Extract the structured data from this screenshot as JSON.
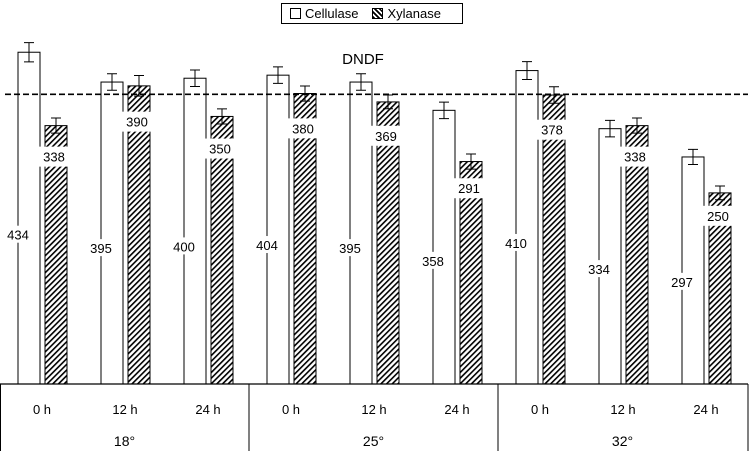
{
  "colors": {
    "cellulase_fill": "#ffffff",
    "xylanase_hatch": "#000000",
    "axis": "#000000"
  },
  "chart_data": {
    "type": "bar",
    "title": "DNDF",
    "series": [
      {
        "name": "Cellulase",
        "pattern": "plain",
        "values": [
          434,
          395,
          400,
          404,
          395,
          358,
          410,
          334,
          297
        ]
      },
      {
        "name": "Xylanase",
        "pattern": "hatched",
        "values": [
          338,
          390,
          350,
          380,
          369,
          291,
          378,
          338,
          250
        ]
      }
    ],
    "categories": [
      "0 h",
      "12 h",
      "24 h",
      "0 h",
      "12 h",
      "24 h",
      "0 h",
      "12 h",
      "24 h"
    ],
    "groups": [
      {
        "label": "18°",
        "categories": [
          "0 h",
          "12 h",
          "24 h"
        ]
      },
      {
        "label": "25°",
        "categories": [
          "0 h",
          "12 h",
          "24 h"
        ]
      },
      {
        "label": "32°",
        "categories": [
          "0 h",
          "12 h",
          "24 h"
        ]
      }
    ],
    "error_bars": {
      "Cellulase": [
        14,
        12,
        12,
        12,
        12,
        12,
        13,
        12,
        11
      ],
      "Xylanase": [
        11,
        15,
        11,
        11,
        10,
        11,
        12,
        11,
        10
      ]
    },
    "reference_line": {
      "value": 379,
      "style": "dashed"
    },
    "ylim": [
      0,
      450
    ],
    "grid": false,
    "legend": "top-center"
  }
}
